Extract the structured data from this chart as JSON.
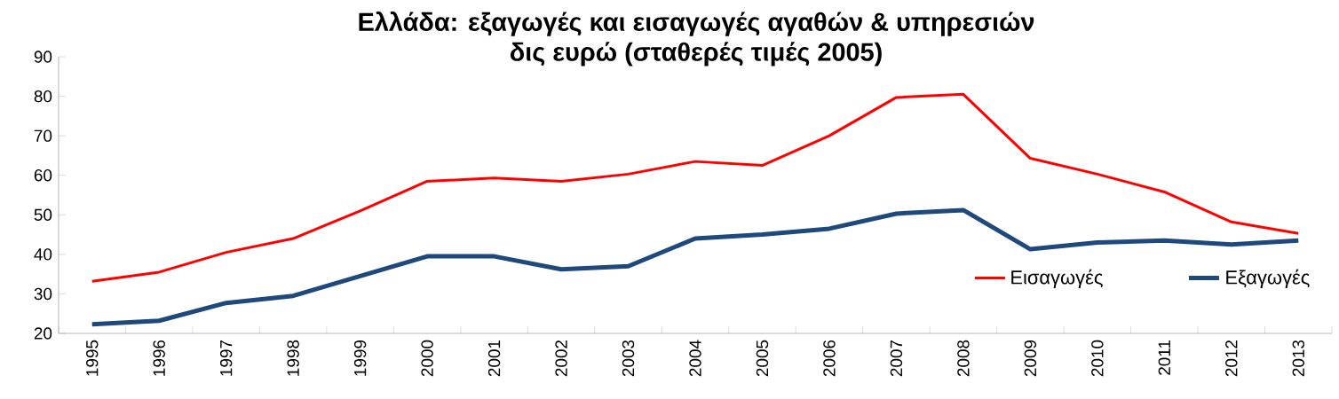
{
  "chart_data": {
    "type": "line",
    "title": "Ελλάδα: εξαγωγές και εισαγωγές αγαθών & υπηρεσιών",
    "subtitle": "δις ευρώ (σταθερές τιμές 2005)",
    "categories": [
      "1995",
      "1996",
      "1997",
      "1998",
      "1999",
      "2000",
      "2001",
      "2002",
      "2003",
      "2004",
      "2005",
      "2006",
      "2007",
      "2008",
      "2009",
      "2010",
      "2011",
      "2012",
      "2013"
    ],
    "series": [
      {
        "name": "Εισαγωγές",
        "color": "#ff0000",
        "values": [
          33.2,
          35.5,
          40.5,
          44,
          51,
          58.5,
          59.3,
          58.5,
          60.3,
          63.5,
          62.5,
          70,
          79.7,
          80.5,
          64.3,
          60.3,
          55.8,
          48.2,
          45.3
        ]
      },
      {
        "name": "Εξαγωγές",
        "color": "#1f497d",
        "values": [
          22.3,
          23.2,
          27.7,
          29.5,
          34.5,
          39.5,
          39.5,
          36.2,
          37,
          44,
          45,
          46.5,
          50.3,
          51.2,
          41.3,
          43,
          43.5,
          42.5,
          43.5
        ]
      }
    ],
    "ylim": [
      20,
      90
    ],
    "yticks": [
      20,
      30,
      40,
      50,
      60,
      70,
      80,
      90
    ],
    "grid": false,
    "legend": "bottom right",
    "marker": "none",
    "line_style": "solid"
  }
}
